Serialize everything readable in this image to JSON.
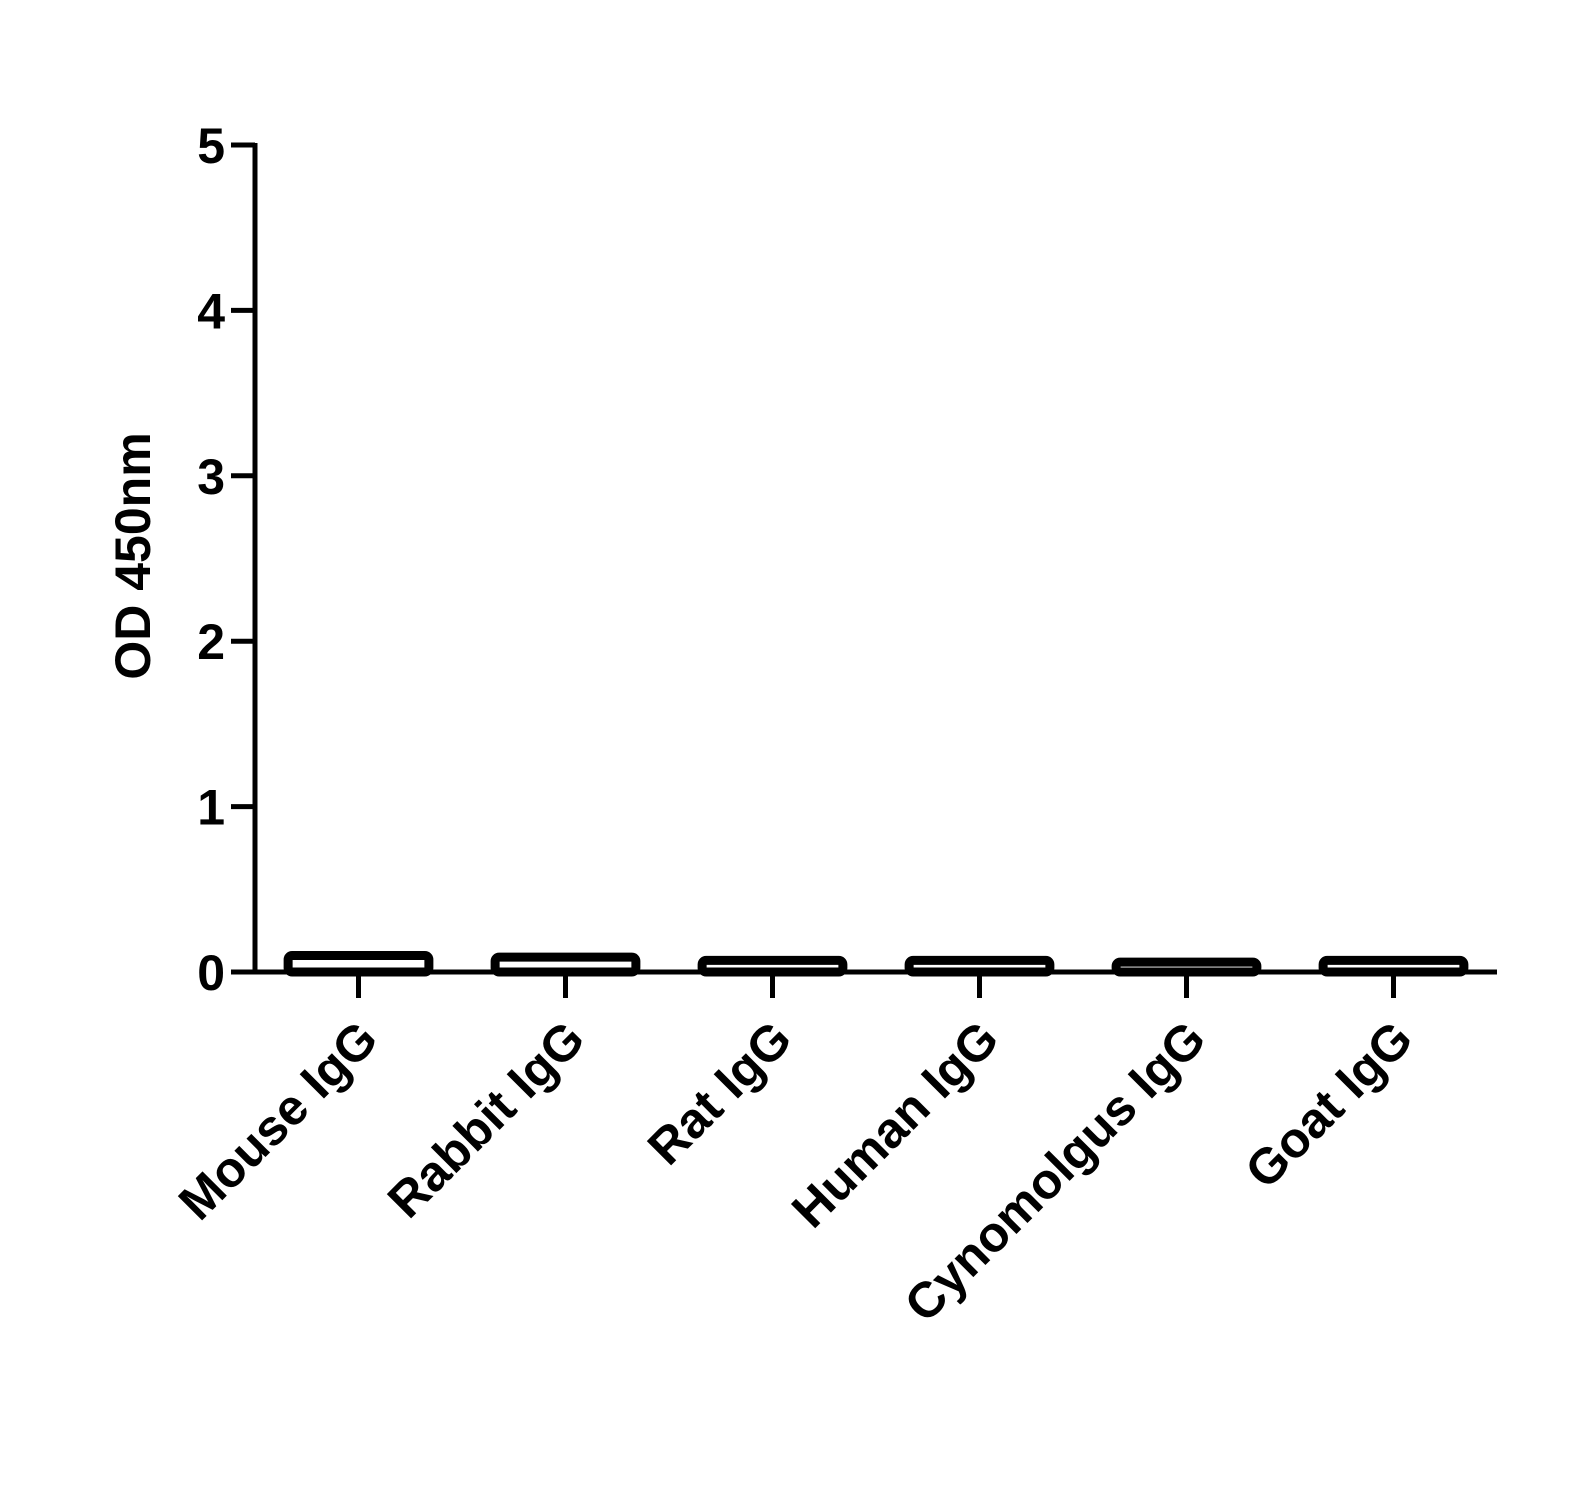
{
  "chart_data": {
    "type": "bar",
    "y_label": "OD 450nm",
    "categories": [
      "Mouse IgG",
      "Rabbit IgG",
      "Rat IgG",
      "Human IgG",
      "Cynomolgus IgG",
      "Goat IgG"
    ],
    "values": [
      0.1,
      0.09,
      0.07,
      0.07,
      0.06,
      0.07
    ],
    "color": "#000000",
    "ylim": [
      0,
      5
    ],
    "yticks": [
      0,
      1,
      2,
      3,
      4,
      5
    ],
    "grid": false
  }
}
